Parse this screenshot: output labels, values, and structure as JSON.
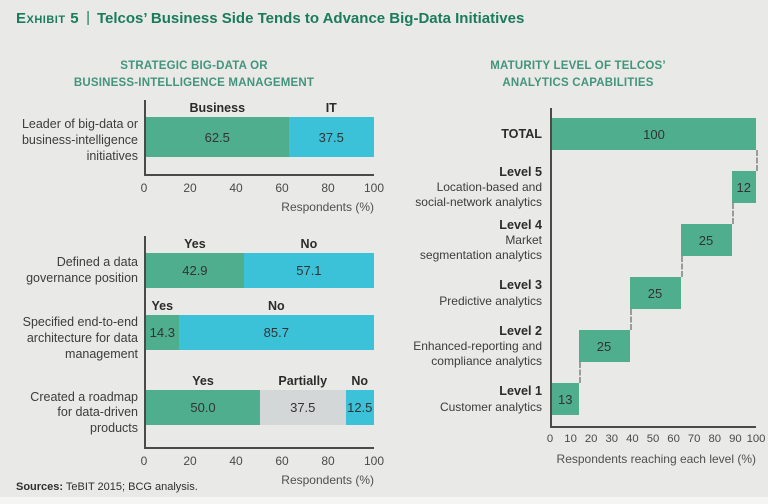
{
  "title": {
    "exhibit": "Exhibit 5",
    "separator": "|",
    "text": "Telcos’ Business Side Tends to Advance Big-Data Initiatives"
  },
  "footer": {
    "sources_label": "Sources:",
    "sources_text": " TeBIT 2015; BCG analysis."
  },
  "colors": {
    "green": "#4fae8d",
    "cyan": "#3bc2d8",
    "gray": "#d4d7d8",
    "heading_teal": "#43947c",
    "title_green": "#1b7b5d",
    "axis": "#4a4a4a",
    "connector": "#9b9b9b",
    "background": "#e9e9e7"
  },
  "chart_data": [
    {
      "type": "bar",
      "subtype": "horizontal-stacked",
      "title_lines": [
        "STRATEGIC BIG-DATA OR",
        "BUSINESS-INTELLIGENCE MANAGEMENT"
      ],
      "xlabel": "Respondents (%)",
      "xlim": [
        0,
        100
      ],
      "xticks": [
        0,
        20,
        40,
        60,
        80,
        100
      ],
      "grid": false,
      "groups": [
        {
          "rows": [
            {
              "category": "Leader of big-data or business-intelligence initiatives",
              "segments": [
                {
                  "label": "Business",
                  "value": 62.5,
                  "display": "62.5",
                  "color": "green"
                },
                {
                  "label": "IT",
                  "value": 37.5,
                  "display": "37.5",
                  "color": "cyan"
                }
              ]
            }
          ]
        },
        {
          "rows": [
            {
              "category": "Defined a data governance position",
              "segments": [
                {
                  "label": "Yes",
                  "value": 42.9,
                  "display": "42.9",
                  "color": "green"
                },
                {
                  "label": "No",
                  "value": 57.1,
                  "display": "57.1",
                  "color": "cyan"
                }
              ]
            },
            {
              "category": "Specified end-to-end architecture for data management",
              "segments": [
                {
                  "label": "Yes",
                  "value": 14.3,
                  "display": "14.3",
                  "color": "green"
                },
                {
                  "label": "No",
                  "value": 85.7,
                  "display": "85.7",
                  "color": "cyan"
                }
              ]
            },
            {
              "category": "Created a roadmap for data-driven products",
              "segments": [
                {
                  "label": "Yes",
                  "value": 50.0,
                  "display": "50.0",
                  "color": "green"
                },
                {
                  "label": "Partially",
                  "value": 37.5,
                  "display": "37.5",
                  "color": "gray"
                },
                {
                  "label": "No",
                  "value": 12.5,
                  "display": "12.5",
                  "color": "cyan"
                }
              ]
            }
          ]
        }
      ]
    },
    {
      "type": "bar",
      "subtype": "waterfall",
      "title_lines": [
        "MATURITY LEVEL OF TELCOS’",
        "ANALYTICS CAPABILITIES"
      ],
      "xlabel": "Respondents reaching each level (%)",
      "xlim": [
        0,
        100
      ],
      "xticks": [
        0,
        10,
        20,
        30,
        40,
        50,
        60,
        70,
        80,
        90,
        100
      ],
      "grid": false,
      "bar_color": "green",
      "rows": [
        {
          "label_lines": [
            "TOTAL"
          ],
          "start": 0,
          "value": 100,
          "display": "100"
        },
        {
          "label_lines": [
            "Level 5",
            "Location-based and",
            "social-network analytics"
          ],
          "start": 88,
          "value": 12,
          "display": "12"
        },
        {
          "label_lines": [
            "Level 4",
            "Market",
            "segmentation analytics"
          ],
          "start": 63,
          "value": 25,
          "display": "25"
        },
        {
          "label_lines": [
            "Level 3",
            "Predictive analytics"
          ],
          "start": 38,
          "value": 25,
          "display": "25"
        },
        {
          "label_lines": [
            "Level 2",
            "Enhanced-reporting and",
            "compliance analytics"
          ],
          "start": 13,
          "value": 25,
          "display": "25"
        },
        {
          "label_lines": [
            "Level 1",
            "Customer analytics"
          ],
          "start": 0,
          "value": 13,
          "display": "13"
        }
      ]
    }
  ]
}
